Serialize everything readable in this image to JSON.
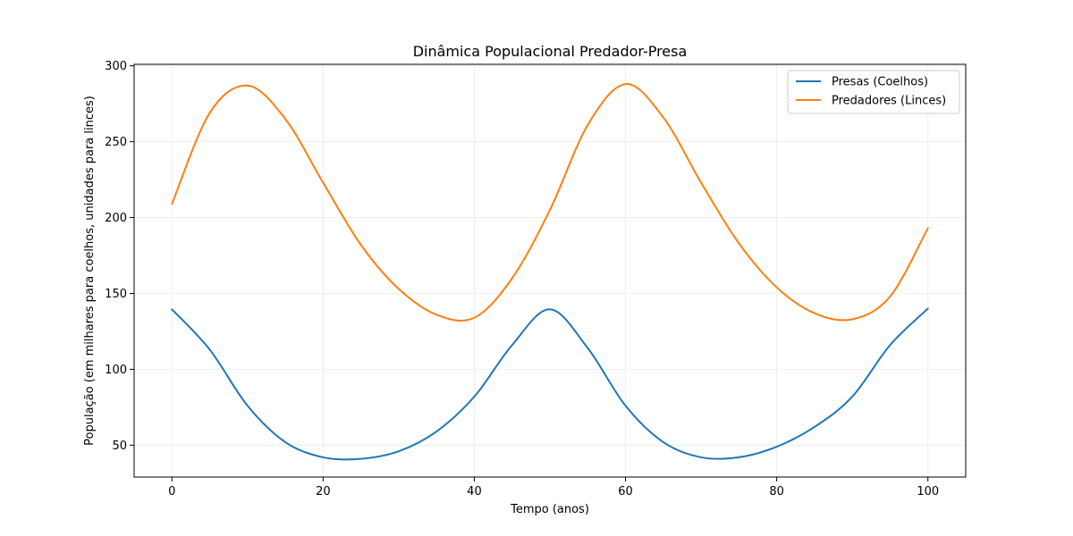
{
  "chart_data": {
    "type": "line",
    "title": "Dinâmica Populacional Predador-Presa",
    "xlabel": "Tempo (anos)",
    "ylabel": "População (em milhares para coelhos, unidades para linces)",
    "xlim": [
      -5,
      105
    ],
    "ylim": [
      29,
      301
    ],
    "xticks": [
      0,
      20,
      40,
      60,
      80,
      100
    ],
    "yticks": [
      50,
      100,
      150,
      200,
      250,
      300
    ],
    "grid": true,
    "legend_position": "top-right",
    "x": [
      0,
      5,
      10,
      15,
      20,
      25,
      30,
      35,
      40,
      45,
      50,
      55,
      60,
      65,
      70,
      75,
      80,
      85,
      90,
      95,
      100
    ],
    "series": [
      {
        "name": "Presas (Coelhos)",
        "color": "#1f77b4",
        "values": [
          139.5,
          113,
          76,
          52,
          42,
          41,
          46,
          59,
          82,
          116,
          139.5,
          114,
          76,
          52,
          42,
          42,
          49,
          62,
          82,
          116,
          140
        ]
      },
      {
        "name": "Predadores (Linces)",
        "color": "#ff7f0e",
        "values": [
          209,
          269,
          287,
          265,
          223,
          182,
          153,
          136,
          134,
          160,
          205,
          261,
          288,
          266,
          223,
          183,
          154,
          137,
          133,
          148,
          193
        ]
      }
    ]
  }
}
